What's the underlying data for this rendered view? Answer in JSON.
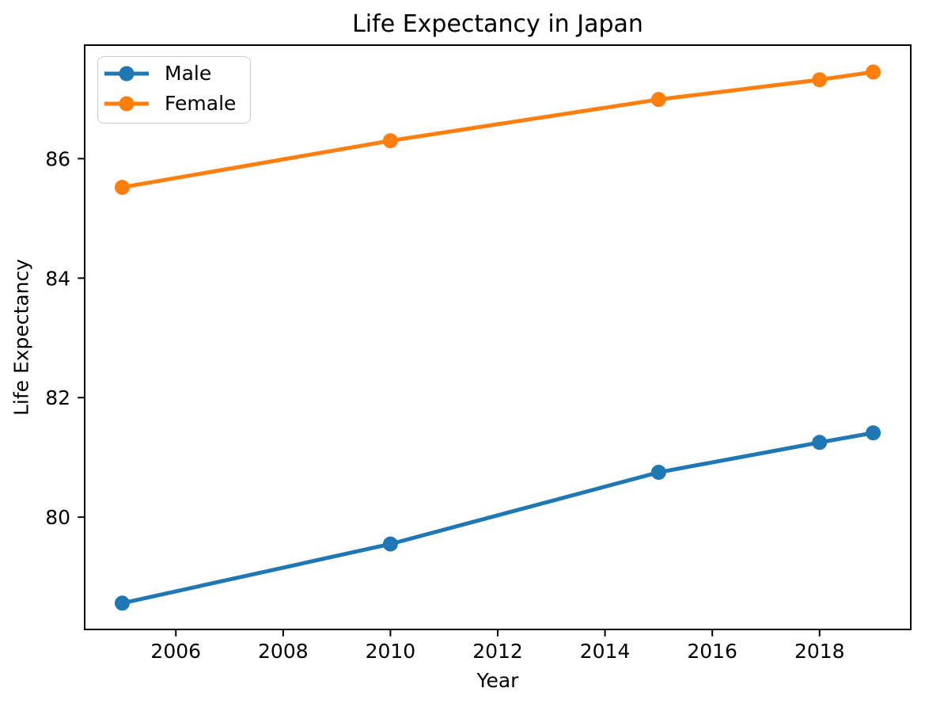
{
  "chart_data": {
    "type": "line",
    "title": "Life Expectancy in Japan",
    "xlabel": "Year",
    "ylabel": "Life Expectancy",
    "x": [
      2005,
      2010,
      2015,
      2018,
      2019
    ],
    "series": [
      {
        "name": "Male",
        "color": "#1f77b4",
        "values": [
          78.56,
          79.55,
          80.75,
          81.25,
          81.41
        ]
      },
      {
        "name": "Female",
        "color": "#ff7f0e",
        "values": [
          85.52,
          86.3,
          86.99,
          87.32,
          87.45
        ]
      }
    ],
    "xticks": [
      2006,
      2008,
      2010,
      2012,
      2014,
      2016,
      2018
    ],
    "yticks": [
      80,
      82,
      84,
      86
    ],
    "xlim": [
      2004.3,
      2019.7
    ],
    "ylim": [
      78.12,
      87.9
    ],
    "grid": false,
    "marker": "circle",
    "legend_position": "upper-left",
    "text_color": "#000000",
    "axis_color": "#000000",
    "background_color": "#ffffff"
  }
}
